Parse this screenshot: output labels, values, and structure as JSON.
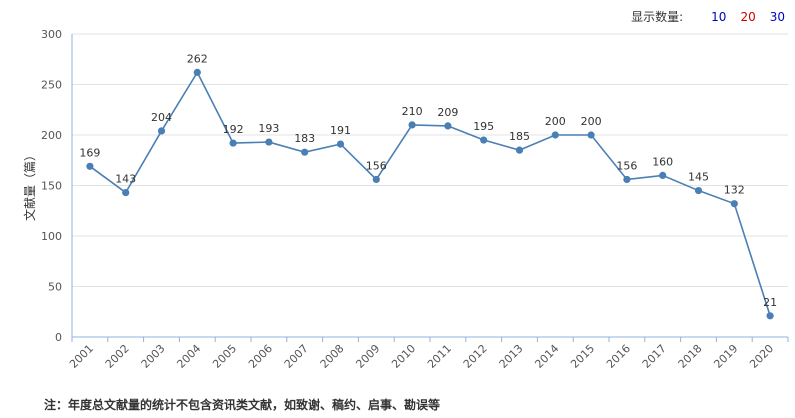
{
  "display": {
    "label": "显示数量:",
    "options": [
      {
        "text": "10",
        "color": "#0000cc"
      },
      {
        "text": "20",
        "color": "#cc0000"
      },
      {
        "text": "30",
        "color": "#0000cc"
      }
    ]
  },
  "footnote": "注：年度总文献量的统计不包含资讯类文献，如致谢、稿约、启事、勘误等",
  "chart_data": {
    "type": "line",
    "ylabel": "文献量（篇）",
    "xlabel": "",
    "ylim": [
      0,
      300
    ],
    "yticks": [
      0,
      50,
      100,
      150,
      200,
      250,
      300
    ],
    "categories": [
      "2001",
      "2002",
      "2003",
      "2004",
      "2005",
      "2006",
      "2007",
      "2008",
      "2009",
      "2010",
      "2011",
      "2012",
      "2013",
      "2014",
      "2015",
      "2016",
      "2017",
      "2018",
      "2019",
      "2020"
    ],
    "values": [
      169,
      143,
      204,
      262,
      192,
      193,
      183,
      191,
      156,
      210,
      209,
      195,
      185,
      200,
      200,
      156,
      160,
      145,
      132,
      21
    ],
    "line_color": "#4a7fb5",
    "grid": true
  }
}
